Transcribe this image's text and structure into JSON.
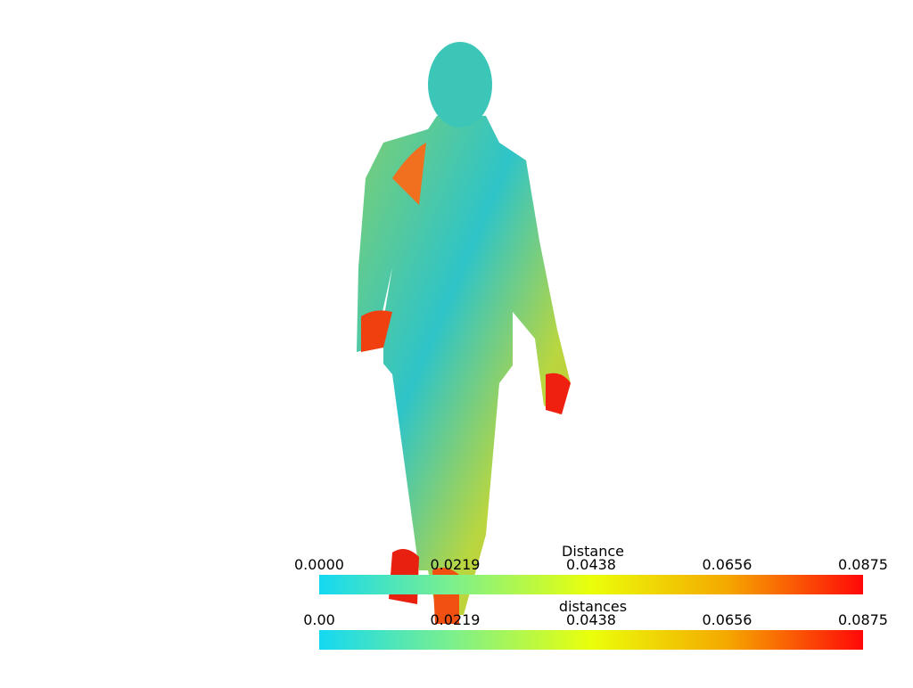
{
  "scalar_bars": [
    {
      "title": "Distance",
      "ticks": [
        "0.0000",
        "0.0219",
        "0.0438",
        "0.0656",
        "0.0875"
      ]
    },
    {
      "title": "distances",
      "ticks": [
        "0.00",
        "0.0219",
        "0.0438",
        "0.0656",
        "0.0875"
      ]
    }
  ]
}
